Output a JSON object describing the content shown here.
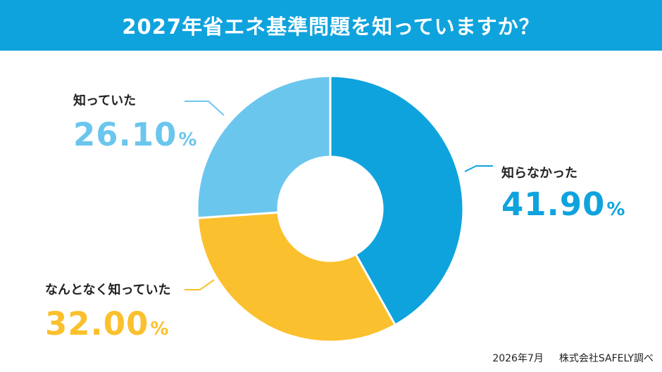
{
  "header": {
    "title": "2027年省エネ基準問題を知っていますか？"
  },
  "chart_data": {
    "type": "pie",
    "donut": true,
    "categories": [
      "知らなかった",
      "なんとなく知っていた",
      "知っていた"
    ],
    "values": [
      41.9,
      32.0,
      26.1
    ],
    "unit": "%",
    "value_labels": [
      "41.90",
      "32.00",
      "26.10"
    ],
    "colors": [
      "#0fa3dd",
      "#fbc02d",
      "#6bc6ee"
    ],
    "start": "top, clockwise"
  },
  "footer": {
    "date": "2026年7月",
    "source": "株式会社SAFELY調べ"
  }
}
